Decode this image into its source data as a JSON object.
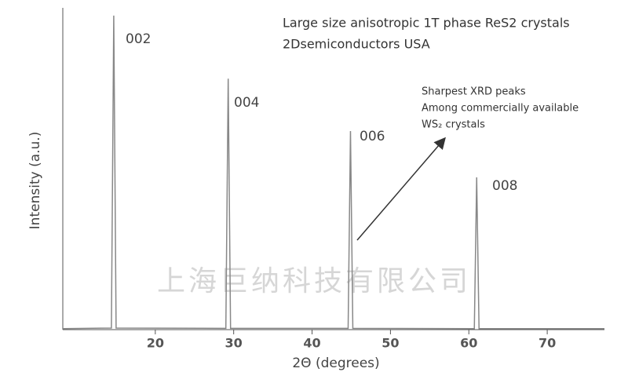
{
  "chart_data": {
    "type": "line",
    "title": "Large size anisotropic 1T phase ReS2 crystals",
    "subtitle": "2Dsemiconductors USA",
    "annotation": [
      "Sharpest XRD peaks",
      "Among commercially available",
      "WS₂ crystals"
    ],
    "watermark": "上海巨纳科技有限公司",
    "peak_labels": [
      "002",
      "004",
      "006",
      "008"
    ],
    "x_label": "2Θ (degrees)",
    "y_label": "Intensity (a.u.)",
    "xlim": [
      8.2,
      77.3
    ],
    "xticks": [
      20,
      30,
      40,
      50,
      60,
      70
    ],
    "ylim": [
      0,
      100
    ],
    "grid": false,
    "series": [
      {
        "color": "#888888",
        "x": [
          8.2,
          14.4,
          14.7,
          15.0,
          29.0,
          29.3,
          29.6,
          44.6,
          44.9,
          45.2,
          60.7,
          61.0,
          61.3,
          77.3
        ],
        "values": [
          0.3,
          0.5,
          97.6,
          0.5,
          0.4,
          78.0,
          0.4,
          0.4,
          61.7,
          0.4,
          0.3,
          47.3,
          0.3,
          0.3
        ]
      }
    ]
  }
}
